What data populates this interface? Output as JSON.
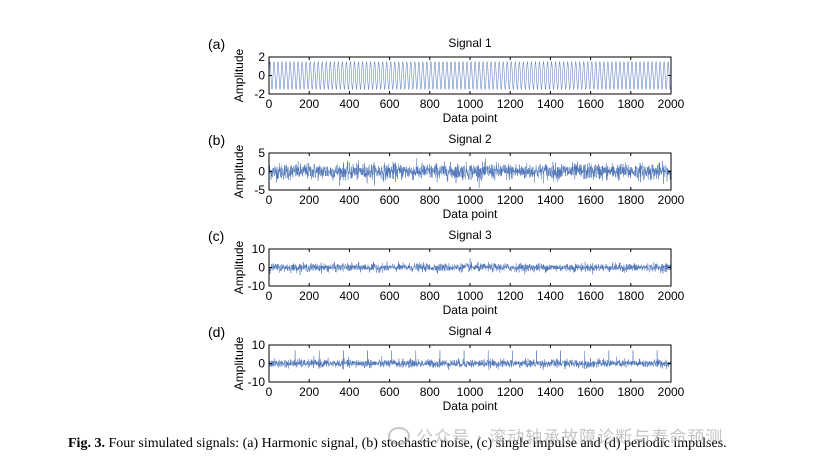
{
  "chart_data": [
    {
      "type": "line",
      "panel_label": "(a)",
      "title": "Signal 1",
      "xlabel": "Data point",
      "ylabel": "Amplitude",
      "xlim": [
        0,
        2000
      ],
      "ylim": [
        -2,
        2
      ],
      "xticks": [
        0,
        200,
        400,
        600,
        800,
        1000,
        1200,
        1400,
        1600,
        1800,
        2000
      ],
      "yticks": [
        -2,
        0,
        2
      ],
      "series": [
        {
          "name": "harmonic signal",
          "kind": "harmonic",
          "amplitude": 1.5,
          "cycles": 100,
          "points": 2000
        }
      ]
    },
    {
      "type": "line",
      "panel_label": "(b)",
      "title": "Signal 2",
      "xlabel": "Data point",
      "ylabel": "Amplitude",
      "xlim": [
        0,
        2000
      ],
      "ylim": [
        -5,
        5
      ],
      "xticks": [
        0,
        200,
        400,
        600,
        800,
        1000,
        1200,
        1400,
        1600,
        1800,
        2000
      ],
      "yticks": [
        -5,
        0,
        5
      ],
      "series": [
        {
          "name": "stochastic noise",
          "kind": "noise",
          "std": 1.1,
          "points": 2000
        }
      ]
    },
    {
      "type": "line",
      "panel_label": "(c)",
      "title": "Signal 3",
      "xlabel": "Data point",
      "ylabel": "Amplitude",
      "xlim": [
        0,
        2000
      ],
      "ylim": [
        -10,
        10
      ],
      "xticks": [
        0,
        200,
        400,
        600,
        800,
        1000,
        1200,
        1400,
        1600,
        1800,
        2000
      ],
      "yticks": [
        -10,
        0,
        10
      ],
      "series": [
        {
          "name": "single impulse",
          "kind": "single_impulse",
          "std": 1.1,
          "impulse_at": 1000,
          "impulse_height": 5,
          "points": 2000
        }
      ]
    },
    {
      "type": "line",
      "panel_label": "(d)",
      "title": "Signal 4",
      "xlabel": "Data point",
      "ylabel": "Amplitude",
      "xlim": [
        0,
        2000
      ],
      "ylim": [
        -10,
        10
      ],
      "xticks": [
        0,
        200,
        400,
        600,
        800,
        1000,
        1200,
        1400,
        1600,
        1800,
        2000
      ],
      "yticks": [
        -10,
        0,
        10
      ],
      "series": [
        {
          "name": "periodic impulses",
          "kind": "periodic_impulses",
          "std": 1.1,
          "period": 120,
          "first_at": 130,
          "impulse_height": 7,
          "points": 2000
        }
      ]
    }
  ],
  "caption": {
    "label": "Fig. 3.",
    "text": "Four simulated signals: (a) Harmonic signal, (b) stochastic noise, (c) single impulse and (d) periodic impulses."
  },
  "watermark": "公众号 · 滚动轴承故障诊断与寿命预测",
  "colors": {
    "line": "#4a72b8",
    "axis": "#000000"
  }
}
